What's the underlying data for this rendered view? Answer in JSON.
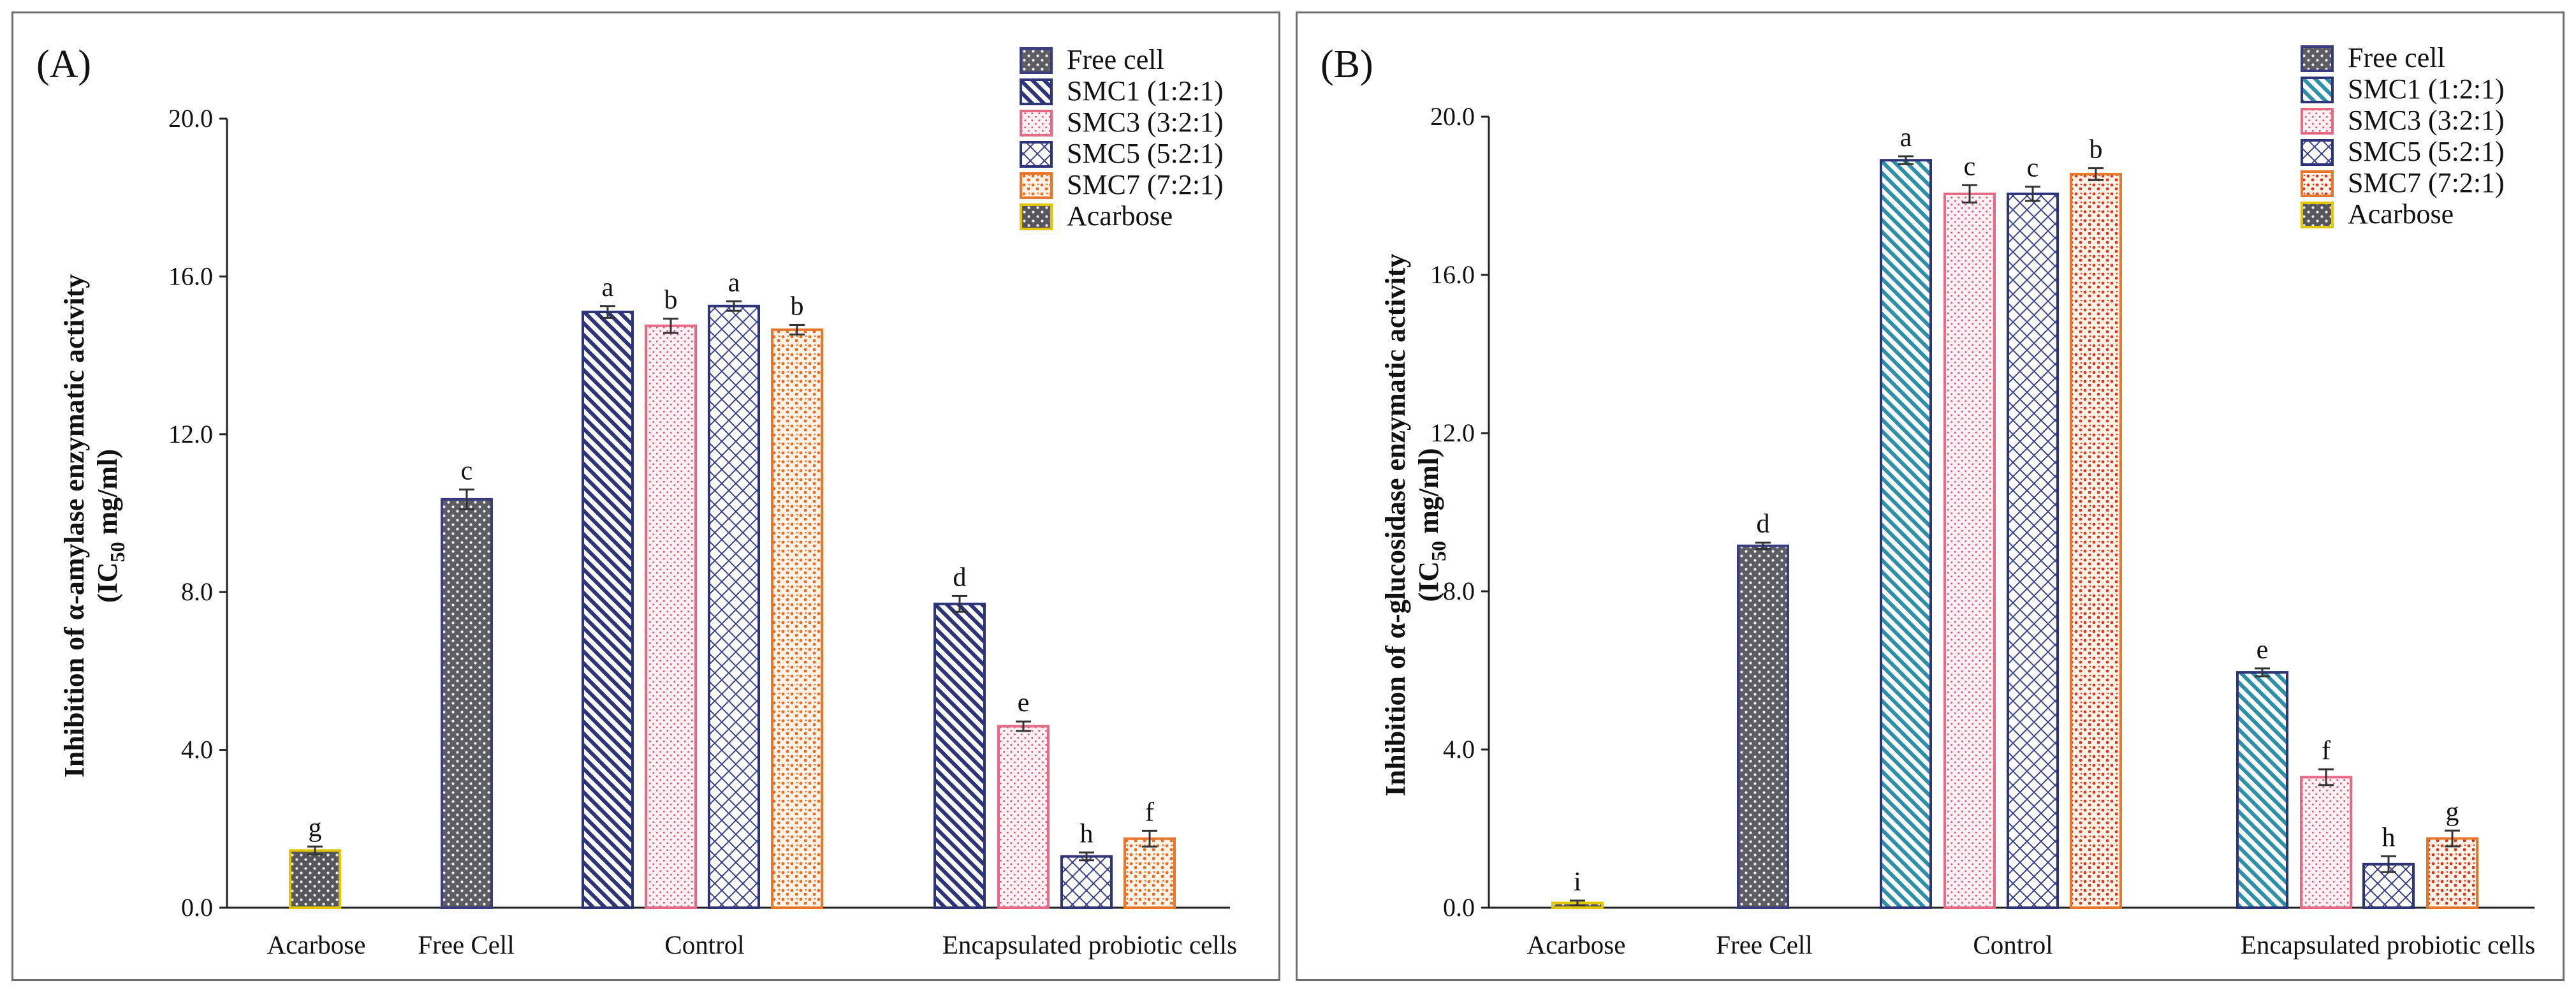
{
  "legend_series": [
    {
      "key": "free_cell",
      "label": "Free cell",
      "pattern": "pat-free",
      "stroke": "#3a3d80"
    },
    {
      "key": "smc1",
      "label": "SMC1 (1:2:1)",
      "pattern": "pat-smc1",
      "stroke": "#2e3478"
    },
    {
      "key": "smc3",
      "label": "SMC3 (3:2:1)",
      "pattern": "pat-smc3",
      "stroke": "#e46a86"
    },
    {
      "key": "smc5",
      "label": "SMC5 (5:2:1)",
      "pattern": "pat-smc5",
      "stroke": "#2e3478"
    },
    {
      "key": "smc7",
      "label": "SMC7  (7:2:1)",
      "pattern": "pat-smc7",
      "stroke": "#e8772e"
    },
    {
      "key": "acarbose",
      "label": "Acarbose",
      "pattern": "pat-acarbose",
      "stroke": "#e1c600"
    }
  ],
  "chart_data": [
    {
      "panel": "(A)",
      "type": "bar",
      "ylabel_line1": "Inhibition of  α-amylase enzymatic activity",
      "ylabel_line2_pre": "(IC",
      "ylabel_line2_sub": "50",
      "ylabel_line2_post": " mg/ml)",
      "ylim": [
        0,
        20
      ],
      "yticks": [
        "0.0",
        "4.0",
        "8.0",
        "12.0",
        "16.0",
        "20.0"
      ],
      "categories": [
        "Acarbose",
        "Free Cell",
        "Control",
        "Encapsulated probiotic cells"
      ],
      "bars": [
        {
          "group": 0,
          "series": "acarbose",
          "value": 1.45,
          "err": 0.1,
          "sig": "g"
        },
        {
          "group": 1,
          "series": "free_cell",
          "value": 10.35,
          "err": 0.25,
          "sig": "c"
        },
        {
          "group": 2,
          "series": "smc1",
          "value": 15.1,
          "err": 0.15,
          "sig": "a"
        },
        {
          "group": 2,
          "series": "smc3",
          "value": 14.75,
          "err": 0.18,
          "sig": "b"
        },
        {
          "group": 2,
          "series": "smc5",
          "value": 15.25,
          "err": 0.12,
          "sig": "a"
        },
        {
          "group": 2,
          "series": "smc7",
          "value": 14.65,
          "err": 0.12,
          "sig": "b"
        },
        {
          "group": 3,
          "series": "smc1",
          "value": 7.7,
          "err": 0.2,
          "sig": "d"
        },
        {
          "group": 3,
          "series": "smc3",
          "value": 4.6,
          "err": 0.12,
          "sig": "e"
        },
        {
          "group": 3,
          "series": "smc5",
          "value": 1.3,
          "err": 0.1,
          "sig": "h"
        },
        {
          "group": 3,
          "series": "smc7",
          "value": 1.75,
          "err": 0.2,
          "sig": "f"
        }
      ]
    },
    {
      "panel": "(B)",
      "type": "bar",
      "ylabel_line1": "Inhibition of α-glucosidase enzymatic activity",
      "ylabel_line2_pre": "(IC",
      "ylabel_line2_sub": "50",
      "ylabel_line2_post": " mg/ml)",
      "ylim": [
        0,
        20
      ],
      "yticks": [
        "0.0",
        "4.0",
        "8.0",
        "12.0",
        "16.0",
        "20.0"
      ],
      "categories": [
        "Acarbose",
        "Free Cell",
        "Control",
        "Encapsulated probiotic cells"
      ],
      "bars": [
        {
          "group": 0,
          "series": "acarbose",
          "value": 0.12,
          "err": 0.06,
          "sig": "i"
        },
        {
          "group": 1,
          "series": "free_cell",
          "value": 9.15,
          "err": 0.08,
          "sig": "d"
        },
        {
          "group": 2,
          "series": "smc1",
          "value": 18.9,
          "err": 0.1,
          "sig": "a"
        },
        {
          "group": 2,
          "series": "smc3",
          "value": 18.05,
          "err": 0.22,
          "sig": "c"
        },
        {
          "group": 2,
          "series": "smc5",
          "value": 18.05,
          "err": 0.18,
          "sig": "c"
        },
        {
          "group": 2,
          "series": "smc7",
          "value": 18.55,
          "err": 0.15,
          "sig": "b"
        },
        {
          "group": 3,
          "series": "smc1",
          "value": 5.95,
          "err": 0.1,
          "sig": "e"
        },
        {
          "group": 3,
          "series": "smc3",
          "value": 3.3,
          "err": 0.2,
          "sig": "f"
        },
        {
          "group": 3,
          "series": "smc5",
          "value": 1.1,
          "err": 0.2,
          "sig": "h"
        },
        {
          "group": 3,
          "series": "smc7",
          "value": 1.75,
          "err": 0.2,
          "sig": "g"
        }
      ]
    }
  ]
}
